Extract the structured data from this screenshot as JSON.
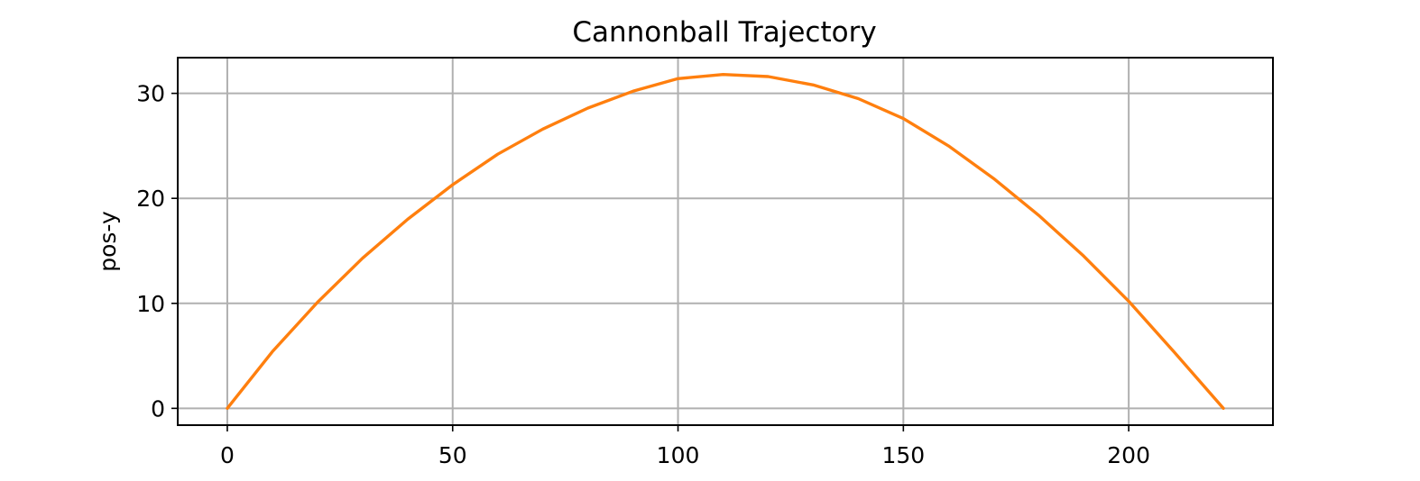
{
  "chart_data": {
    "type": "line",
    "title": "Cannonball Trajectory",
    "xlabel": "",
    "ylabel": "pos-y",
    "xlim": [
      -11,
      232
    ],
    "ylim": [
      -1.6,
      33.4
    ],
    "xticks": [
      0,
      50,
      100,
      150,
      200
    ],
    "yticks": [
      0,
      10,
      20,
      30
    ],
    "grid": true,
    "series": [
      {
        "color": "#ff7f0e",
        "x": [
          0,
          10,
          20,
          30,
          40,
          50,
          60,
          70,
          80,
          90,
          100,
          110,
          120,
          130,
          140,
          150,
          160,
          170,
          180,
          190,
          200,
          210,
          221
        ],
        "y": [
          0.0,
          5.4,
          10.1,
          14.3,
          18.0,
          21.3,
          24.2,
          26.6,
          28.6,
          30.2,
          31.4,
          31.8,
          31.6,
          30.8,
          29.5,
          27.6,
          25.0,
          21.9,
          18.4,
          14.5,
          10.2,
          5.4,
          0.0
        ]
      }
    ]
  }
}
